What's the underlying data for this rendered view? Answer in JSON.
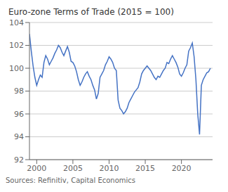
{
  "chart_data": {
    "type": "line",
    "title": "Euro-zone Terms of Trade (2015 = 100)",
    "source": "Sources: Refinitiv, Capital Economics",
    "color": "#4472c4",
    "grid": "y",
    "xlim": [
      1999.0,
      2024.3
    ],
    "xticks": [
      2000,
      2005,
      2010,
      2015,
      2020
    ],
    "ylim": [
      92,
      104
    ],
    "yticks": [
      92,
      94,
      96,
      98,
      100,
      102,
      104
    ],
    "x": [
      1999.0,
      1999.25,
      1999.5,
      1999.75,
      2000.0,
      2000.25,
      2000.5,
      2000.75,
      2001.0,
      2001.25,
      2001.5,
      2001.75,
      2002.0,
      2002.25,
      2002.5,
      2002.75,
      2003.0,
      2003.25,
      2003.5,
      2003.75,
      2004.0,
      2004.25,
      2004.5,
      2004.75,
      2005.0,
      2005.25,
      2005.5,
      2005.75,
      2006.0,
      2006.25,
      2006.5,
      2006.75,
      2007.0,
      2007.25,
      2007.5,
      2007.75,
      2008.0,
      2008.25,
      2008.5,
      2008.75,
      2009.0,
      2009.25,
      2009.5,
      2009.75,
      2010.0,
      2010.25,
      2010.5,
      2010.75,
      2011.0,
      2011.25,
      2011.5,
      2011.75,
      2012.0,
      2012.25,
      2012.5,
      2012.75,
      2013.0,
      2013.25,
      2013.5,
      2013.75,
      2014.0,
      2014.25,
      2014.5,
      2014.75,
      2015.0,
      2015.25,
      2015.5,
      2015.75,
      2016.0,
      2016.25,
      2016.5,
      2016.75,
      2017.0,
      2017.25,
      2017.5,
      2017.75,
      2018.0,
      2018.25,
      2018.5,
      2018.75,
      2019.0,
      2019.25,
      2019.5,
      2019.75,
      2020.0,
      2020.25,
      2020.5,
      2020.75,
      2021.0,
      2021.25,
      2021.5,
      2021.75,
      2022.0,
      2022.25,
      2022.5,
      2022.75,
      2023.0,
      2023.25,
      2023.5,
      2023.75,
      2024.0
    ],
    "values": [
      103.0,
      101.5,
      100.2,
      99.2,
      98.5,
      99.0,
      99.4,
      99.2,
      100.5,
      101.1,
      100.8,
      100.3,
      100.6,
      100.9,
      101.3,
      101.6,
      102.0,
      101.8,
      101.4,
      101.1,
      101.5,
      101.9,
      101.4,
      100.6,
      100.5,
      100.2,
      99.7,
      99.0,
      98.5,
      98.8,
      99.2,
      99.5,
      99.7,
      99.3,
      99.0,
      98.5,
      98.1,
      97.3,
      97.8,
      99.2,
      99.5,
      99.8,
      100.3,
      100.6,
      101.0,
      100.8,
      100.5,
      100.0,
      99.8,
      97.2,
      96.5,
      96.3,
      96.0,
      96.2,
      96.5,
      97.0,
      97.3,
      97.6,
      97.9,
      98.1,
      98.3,
      98.8,
      99.5,
      99.8,
      100.0,
      100.2,
      100.0,
      99.8,
      99.5,
      99.2,
      99.0,
      99.3,
      99.2,
      99.5,
      99.8,
      100.0,
      100.5,
      100.4,
      100.8,
      101.1,
      100.8,
      100.5,
      100.1,
      99.5,
      99.3,
      99.6,
      100.0,
      100.3,
      101.5,
      101.8,
      102.2,
      101.0,
      99.0,
      96.0,
      94.2,
      98.5,
      99.0,
      99.3,
      99.6,
      99.7,
      100.0
    ]
  }
}
